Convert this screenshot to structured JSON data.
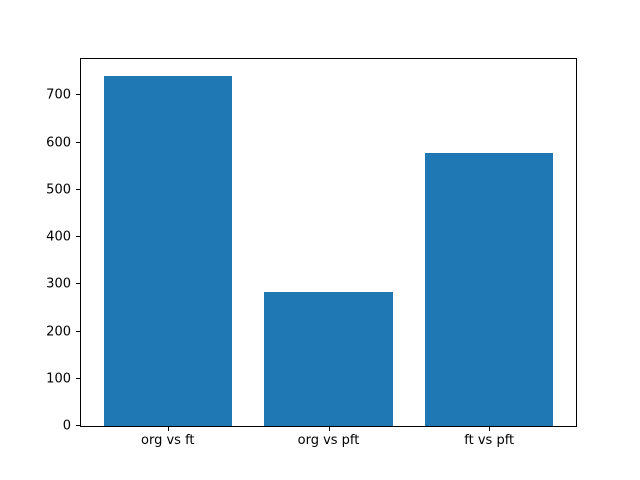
{
  "figure": {
    "background": "#ffffff"
  },
  "chart_data": {
    "type": "bar",
    "categories": [
      "org vs ft",
      "org vs pft",
      "ft vs pft"
    ],
    "values": [
      740,
      284,
      578
    ],
    "title": "",
    "xlabel": "",
    "ylabel": "",
    "ylim": [
      0,
      777
    ],
    "xlim": [
      -0.54,
      2.54
    ],
    "yticks": [
      0,
      100,
      200,
      300,
      400,
      500,
      600,
      700
    ],
    "bar_width": 0.8,
    "bar_color": "#1f77b4",
    "spine_color": "#000000",
    "tick_label_color": "#000000",
    "grid": false,
    "legend": null
  }
}
